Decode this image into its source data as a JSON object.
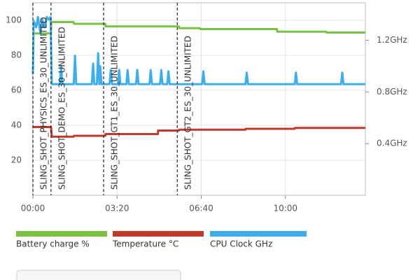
{
  "chart_data": {
    "type": "line",
    "xlim": [
      0,
      790
    ],
    "xticks": [
      {
        "value": 0,
        "label": "00:00"
      },
      {
        "value": 200,
        "label": "03:20"
      },
      {
        "value": 400,
        "label": "06:40"
      },
      {
        "value": 600,
        "label": "10:00"
      }
    ],
    "ylim": [
      0,
      110
    ],
    "yticks": [
      20,
      40,
      60,
      80,
      100
    ],
    "y2lim": [
      0,
      1.49
    ],
    "y2ticks": [
      {
        "value": 0.4,
        "label": "0.4GHz"
      },
      {
        "value": 0.8,
        "label": "0.8GHz"
      },
      {
        "value": 1.2,
        "label": "1.2GHz"
      }
    ],
    "grid": true,
    "markers": [
      {
        "x": 0,
        "label": "SLING_SHOT_PHYSICS_ES_30_UNLIMITED"
      },
      {
        "x": 43,
        "label": "SLING_SHOT_DEMO_ES_30_UNLIMITED"
      },
      {
        "x": 168,
        "label": "SLING_SHOT_GT1_ES_30_UNLIMITED"
      },
      {
        "x": 343,
        "label": "SLING_SHOT_GT2_ES_30_UNLIMITED"
      }
    ],
    "series": [
      {
        "name": "Battery charge %",
        "color": "#7cc242",
        "x": [
          0,
          43,
          43.5,
          97,
          97.5,
          172,
          172.5,
          347,
          347.5,
          397,
          397.5,
          580,
          580.5,
          697,
          697.5,
          790
        ],
        "values": [
          92.5,
          92.5,
          99,
          99,
          98,
          98,
          96.5,
          96.5,
          95.5,
          95.5,
          95,
          95,
          93.5,
          93.5,
          93,
          93
        ]
      },
      {
        "name": "Temperature °C",
        "color": "#c0392b",
        "x": [
          0,
          43,
          45,
          97,
          97.5,
          172,
          172.5,
          297,
          297.5,
          347,
          347.5,
          505,
          505.5,
          622,
          622.5,
          790
        ],
        "values": [
          39,
          39,
          33.5,
          33.5,
          34,
          34,
          35,
          35,
          37,
          37,
          37.5,
          37.5,
          38,
          38,
          38.5,
          38.5
        ]
      },
      {
        "name": "CPU Clock GHz",
        "color": "#3daee9",
        "axis": "y2",
        "x": [
          0,
          2,
          8,
          12,
          18,
          22,
          28,
          33,
          38,
          42,
          45,
          64,
          67,
          70,
          97,
          100,
          103,
          140,
          143,
          146,
          152,
          155,
          158,
          160,
          163,
          182,
          185,
          188,
          202,
          205,
          208,
          222,
          225,
          228,
          245,
          248,
          251,
          277,
          280,
          283,
          302,
          305,
          308,
          319,
          322,
          325,
          402,
          405,
          408,
          505,
          508,
          511,
          622,
          625,
          628,
          732,
          735,
          738,
          790
        ],
        "values": [
          0.94,
          1.35,
          1.3,
          1.38,
          1.25,
          1.36,
          1.3,
          1.38,
          1.36,
          1.38,
          0.86,
          0.86,
          1.0,
          0.86,
          0.86,
          1.08,
          0.86,
          0.86,
          1.02,
          0.86,
          0.86,
          1.1,
          0.86,
          1.0,
          0.86,
          0.86,
          0.97,
          0.86,
          0.86,
          0.97,
          0.86,
          0.86,
          0.97,
          0.86,
          0.86,
          0.97,
          0.86,
          0.86,
          0.97,
          0.86,
          0.86,
          0.97,
          0.86,
          0.86,
          0.96,
          0.86,
          0.86,
          0.96,
          0.86,
          0.86,
          0.95,
          0.86,
          0.86,
          0.95,
          0.86,
          0.86,
          0.95,
          0.86,
          0.86
        ]
      }
    ]
  }
}
